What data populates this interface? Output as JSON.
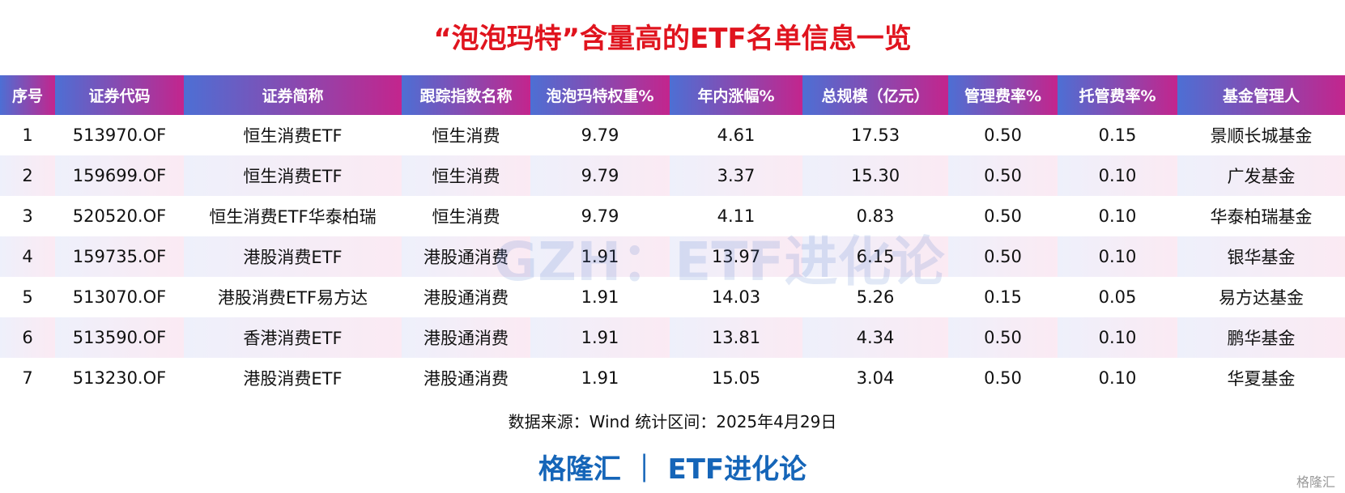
{
  "title": "“泡泡玛特”含量高的ETF名单信息一览",
  "table": {
    "headers": [
      "序号",
      "证券代码",
      "证券简称",
      "跟踪指数名称",
      "泡泡玛特权重%",
      "年内涨幅%",
      "总规模（亿元）",
      "管理费率%",
      "托管费率%",
      "基金管理人"
    ],
    "rows": [
      [
        "1",
        "513970.OF",
        "恒生消费ETF",
        "恒生消费",
        "9.79",
        "4.61",
        "17.53",
        "0.50",
        "0.15",
        "景顺长城基金"
      ],
      [
        "2",
        "159699.OF",
        "恒生消费ETF",
        "恒生消费",
        "9.79",
        "3.37",
        "15.30",
        "0.50",
        "0.10",
        "广发基金"
      ],
      [
        "3",
        "520520.OF",
        "恒生消费ETF华泰柏瑞",
        "恒生消费",
        "9.79",
        "4.11",
        "0.83",
        "0.50",
        "0.10",
        "华泰柏瑞基金"
      ],
      [
        "4",
        "159735.OF",
        "港股消费ETF",
        "港股通消费",
        "1.91",
        "13.97",
        "6.15",
        "0.50",
        "0.10",
        "银华基金"
      ],
      [
        "5",
        "513070.OF",
        "港股消费ETF易方达",
        "港股通消费",
        "1.91",
        "14.03",
        "5.26",
        "0.15",
        "0.05",
        "易方达基金"
      ],
      [
        "6",
        "513590.OF",
        "香港消费ETF",
        "港股通消费",
        "1.91",
        "13.81",
        "4.34",
        "0.50",
        "0.10",
        "鹏华基金"
      ],
      [
        "7",
        "513230.OF",
        "港股消费ETF",
        "港股通消费",
        "1.91",
        "15.05",
        "3.04",
        "0.50",
        "0.10",
        "华夏基金"
      ]
    ]
  },
  "source": "数据来源：Wind 统计区间：2025年4月29日",
  "brand": "格隆汇 ｜ ETF进化论",
  "watermark": "GZH：ETF进化论",
  "corner_mark": "格隆汇"
}
